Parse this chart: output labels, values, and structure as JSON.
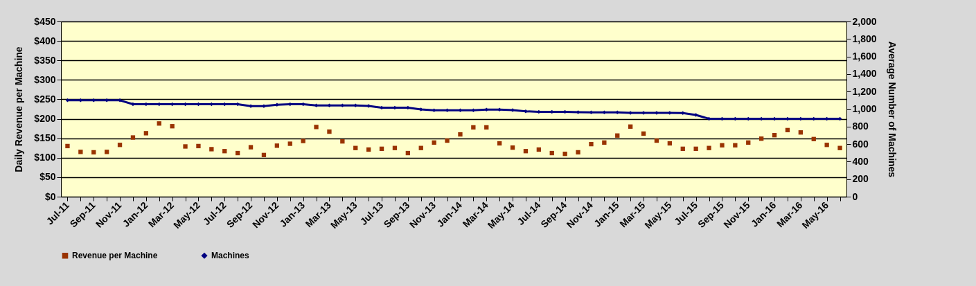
{
  "chart_data": {
    "type": "line",
    "categories": [
      "Jul-11",
      null,
      "Sep-11",
      null,
      "Nov-11",
      null,
      "Jan-12",
      null,
      "Mar-12",
      null,
      "May-12",
      null,
      "Jul-12",
      null,
      "Sep-12",
      null,
      "Nov-12",
      null,
      "Jan-13",
      null,
      "Mar-13",
      null,
      "May-13",
      null,
      "Jul-13",
      null,
      "Sep-13",
      null,
      "Nov-13",
      null,
      "Jan-14",
      null,
      "Mar-14",
      null,
      "May-14",
      null,
      "Jul-14",
      null,
      "Sep-14",
      null,
      "Nov-14",
      null,
      "Jan-15",
      null,
      "Mar-15",
      null,
      "May-15",
      null,
      "Jul-15",
      null,
      "Sep-15",
      null,
      "Nov-15",
      null,
      "Jan-16",
      null,
      "Mar-16",
      null,
      "May-16",
      null
    ],
    "ylabel": "Daily Revenue per Machine",
    "y2label": "Average Number of Machines",
    "ylim": [
      0,
      450
    ],
    "yticks": [
      {
        "value": 0,
        "label": "$0"
      },
      {
        "value": 50,
        "label": "$50"
      },
      {
        "value": 100,
        "label": "$100"
      },
      {
        "value": 150,
        "label": "$150"
      },
      {
        "value": 200,
        "label": "$200"
      },
      {
        "value": 250,
        "label": "$250"
      },
      {
        "value": 300,
        "label": "$300"
      },
      {
        "value": 350,
        "label": "$350"
      },
      {
        "value": 400,
        "label": "$400"
      },
      {
        "value": 450,
        "label": "$450"
      }
    ],
    "y2lim": [
      0,
      2000
    ],
    "y2ticks": [
      0,
      200,
      400,
      600,
      800,
      {
        "value": 1000,
        "label": "1,000"
      },
      {
        "value": 1200,
        "label": "1,200"
      },
      {
        "value": 1400,
        "label": "1,400"
      },
      {
        "value": 1600,
        "label": "1,600"
      },
      {
        "value": 1800,
        "label": "1,800"
      },
      {
        "value": 2000,
        "label": "2,000"
      }
    ],
    "grid": "y",
    "legend": "bottom",
    "series": [
      {
        "name": "Revenue per Machine",
        "type": "scatter",
        "marker": "square",
        "color": "#993300",
        "values": [
          130,
          115,
          114,
          115,
          133,
          152,
          163,
          188,
          181,
          129,
          130,
          122,
          117,
          112,
          127,
          107,
          131,
          136,
          143,
          179,
          167,
          142,
          125,
          121,
          123,
          125,
          112,
          125,
          139,
          144,
          160,
          178,
          178,
          137,
          126,
          117,
          121,
          112,
          110,
          114,
          135,
          139,
          157,
          180,
          162,
          144,
          137,
          123,
          123,
          125,
          132,
          132,
          139,
          149,
          158,
          171,
          165,
          148,
          133,
          125
        ]
      },
      {
        "name": "Machines",
        "marker": "diamond",
        "line_style": "solid",
        "axis": "y2",
        "color": "#000080",
        "values": [
          1100,
          1100,
          1100,
          1100,
          1100,
          1055,
          1055,
          1055,
          1055,
          1055,
          1055,
          1055,
          1055,
          1055,
          1033,
          1033,
          1049,
          1055,
          1055,
          1041,
          1041,
          1041,
          1041,
          1036,
          1015,
          1015,
          1015,
          996,
          986,
          986,
          986,
          986,
          994,
          994,
          988,
          975,
          968,
          968,
          968,
          964,
          962,
          962,
          962,
          957,
          957,
          957,
          957,
          955,
          933,
          890,
          890,
          890,
          890,
          890,
          890,
          890,
          890,
          890,
          890,
          890
        ]
      }
    ]
  }
}
